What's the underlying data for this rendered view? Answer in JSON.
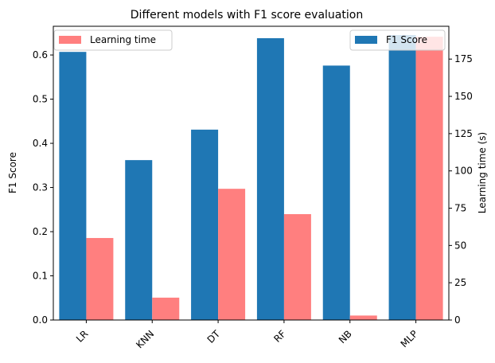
{
  "chart_data": {
    "type": "bar",
    "title": "Different models with F1 score evaluation",
    "categories": [
      "LR",
      "KNN",
      "DT",
      "RF",
      "NB",
      "MLP"
    ],
    "series": [
      {
        "name": "F1 Score",
        "axis": "left",
        "color": "#1f77b4",
        "values": [
          0.607,
          0.362,
          0.431,
          0.638,
          0.576,
          0.645
        ]
      },
      {
        "name": "Learning time",
        "axis": "right",
        "color": "#ff7f7f",
        "values": [
          55,
          15,
          88,
          71,
          3,
          190
        ]
      }
    ],
    "ylabel": "F1 Score",
    "ylim": [
      0,
      0.665
    ],
    "yticks": [
      "0.0",
      "0.1",
      "0.2",
      "0.3",
      "0.4",
      "0.5",
      "0.6"
    ],
    "y2label": "Learning time (s)",
    "y2lim": [
      0,
      197
    ],
    "y2ticks": [
      "0",
      "25",
      "50",
      "75",
      "100",
      "125",
      "150",
      "175"
    ],
    "legend_left": "top-left",
    "legend_right": "top-right",
    "grid": false
  }
}
